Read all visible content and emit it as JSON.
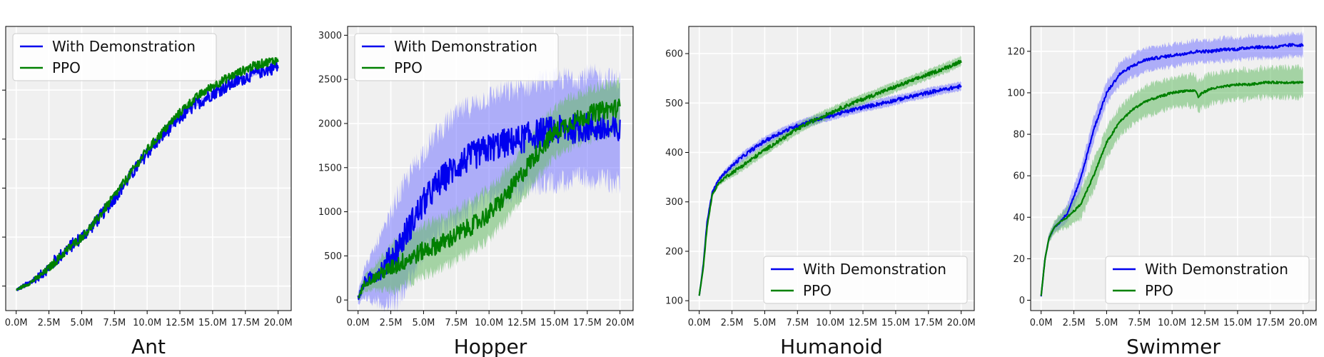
{
  "colors": {
    "demo": "#0000ee",
    "ppo": "#008000",
    "demo_band": "#7777ff",
    "ppo_band": "#66bb66",
    "plot_bg": "#f0f0f0",
    "grid": "#ffffff"
  },
  "chart_data": [
    {
      "type": "line",
      "title": "Ant",
      "xlabel": "",
      "ylabel": "",
      "xlim": [
        -0.8,
        21
      ],
      "ylim": [
        -500,
        5300
      ],
      "x_ticks": [
        0,
        2.5,
        5,
        7.5,
        10,
        12.5,
        15,
        17.5,
        20
      ],
      "x_tick_labels": [
        "0.0M",
        "2.5M",
        "5.0M",
        "7.5M",
        "10.0M",
        "12.5M",
        "15.0M",
        "17.5M",
        "20.0M"
      ],
      "y_ticks": [
        0,
        1000,
        2000,
        3000,
        4000
      ],
      "y_tick_labels": [
        "",
        "",
        "",
        "",
        ""
      ],
      "grid": true,
      "legend": "top-left",
      "series": [
        {
          "name": "With Demonstration",
          "color": "#0000ee",
          "noise": 0.018,
          "band": 0.02,
          "x": [
            0,
            1,
            2,
            3,
            4,
            5,
            6,
            7,
            8,
            9,
            10,
            11,
            12,
            13,
            14,
            15,
            16,
            17,
            18,
            19,
            20
          ],
          "y": [
            -80,
            60,
            250,
            520,
            780,
            1000,
            1280,
            1620,
            1980,
            2350,
            2720,
            3020,
            3300,
            3560,
            3760,
            3930,
            4070,
            4200,
            4320,
            4410,
            4480
          ]
        },
        {
          "name": "PPO",
          "color": "#008000",
          "noise": 0.012,
          "band": 0.025,
          "x": [
            0,
            1,
            2,
            3,
            4,
            5,
            6,
            7,
            8,
            9,
            10,
            11,
            12,
            13,
            14,
            15,
            16,
            17,
            18,
            19,
            20
          ],
          "y": [
            -80,
            60,
            240,
            500,
            770,
            1000,
            1300,
            1660,
            2030,
            2400,
            2780,
            3090,
            3400,
            3680,
            3900,
            4080,
            4230,
            4360,
            4480,
            4560,
            4620
          ]
        }
      ]
    },
    {
      "type": "line",
      "title": "Hopper",
      "xlabel": "",
      "ylabel": "",
      "xlim": [
        -0.8,
        21
      ],
      "ylim": [
        -120,
        3100
      ],
      "x_ticks": [
        0,
        2.5,
        5,
        7.5,
        10,
        12.5,
        15,
        17.5,
        20
      ],
      "x_tick_labels": [
        "0.0M",
        "2.5M",
        "5.0M",
        "7.5M",
        "10.0M",
        "12.5M",
        "15.0M",
        "17.5M",
        "20.0M"
      ],
      "y_ticks": [
        0,
        500,
        1000,
        1500,
        2000,
        2500,
        3000
      ],
      "y_tick_labels": [
        "0",
        "500",
        "1000",
        "1500",
        "2000",
        "2500",
        "3000"
      ],
      "grid": true,
      "legend": "top-left",
      "series": [
        {
          "name": "With Demonstration",
          "color": "#0000ee",
          "noise": 0.04,
          "band": 0.45,
          "x": [
            0,
            0.5,
            1,
            2,
            3,
            4,
            5,
            6,
            7,
            8,
            9,
            10,
            11,
            12,
            13,
            14,
            15,
            16,
            17,
            18,
            19,
            20
          ],
          "y": [
            20,
            200,
            250,
            380,
            580,
            850,
            1100,
            1300,
            1450,
            1570,
            1650,
            1720,
            1770,
            1800,
            1850,
            1900,
            1920,
            1930,
            1950,
            1960,
            1930,
            1900
          ]
        },
        {
          "name": "PPO",
          "color": "#008000",
          "noise": 0.025,
          "band": 0.22,
          "x": [
            0,
            0.5,
            1,
            2,
            3,
            4,
            5,
            6,
            7,
            8,
            9,
            10,
            11,
            12,
            13,
            14,
            15,
            16,
            17,
            18,
            19,
            20
          ],
          "y": [
            20,
            190,
            230,
            320,
            400,
            480,
            560,
            620,
            690,
            780,
            870,
            980,
            1130,
            1320,
            1530,
            1730,
            1900,
            2000,
            2060,
            2120,
            2160,
            2180
          ]
        }
      ]
    },
    {
      "type": "line",
      "title": "Humanoid",
      "xlabel": "",
      "ylabel": "",
      "xlim": [
        -0.8,
        21
      ],
      "ylim": [
        80,
        655
      ],
      "x_ticks": [
        0,
        2.5,
        5,
        7.5,
        10,
        12.5,
        15,
        17.5,
        20
      ],
      "x_tick_labels": [
        "0.0M",
        "2.5M",
        "5.0M",
        "7.5M",
        "10.0M",
        "12.5M",
        "15.0M",
        "17.5M",
        "20.0M"
      ],
      "y_ticks": [
        100,
        200,
        300,
        400,
        500,
        600
      ],
      "y_tick_labels": [
        "100",
        "200",
        "300",
        "400",
        "500",
        "600"
      ],
      "grid": true,
      "legend": "bottom-right",
      "series": [
        {
          "name": "With Demonstration",
          "color": "#0000ee",
          "noise": 0.005,
          "band": 0.04,
          "x": [
            0,
            0.3,
            0.6,
            1,
            1.5,
            2,
            3,
            4,
            5,
            6,
            7,
            8,
            9,
            10,
            11,
            12,
            13,
            14,
            15,
            16,
            17,
            18,
            19,
            20
          ],
          "y": [
            110,
            170,
            260,
            320,
            345,
            360,
            385,
            405,
            423,
            437,
            449,
            459,
            467,
            474,
            481,
            488,
            494,
            500,
            506,
            512,
            518,
            524,
            529,
            534
          ]
        },
        {
          "name": "PPO",
          "color": "#008000",
          "noise": 0.005,
          "band": 0.045,
          "x": [
            0,
            0.3,
            0.6,
            1,
            1.5,
            2,
            3,
            4,
            5,
            6,
            7,
            8,
            9,
            10,
            11,
            12,
            13,
            14,
            15,
            16,
            17,
            18,
            19,
            20
          ],
          "y": [
            110,
            165,
            250,
            315,
            338,
            350,
            368,
            386,
            405,
            422,
            439,
            455,
            468,
            480,
            492,
            503,
            513,
            523,
            533,
            543,
            553,
            563,
            573,
            585
          ]
        }
      ]
    },
    {
      "type": "line",
      "title": "Swimmer",
      "xlabel": "",
      "ylabel": "",
      "xlim": [
        -0.8,
        21
      ],
      "ylim": [
        -5,
        132
      ],
      "x_ticks": [
        0,
        2.5,
        5,
        7.5,
        10,
        12.5,
        15,
        17.5,
        20
      ],
      "x_tick_labels": [
        "0.0M",
        "2.5M",
        "5.0M",
        "7.5M",
        "10.0M",
        "12.5M",
        "15.0M",
        "17.5M",
        "20.0M"
      ],
      "y_ticks": [
        0,
        20,
        40,
        60,
        80,
        100,
        120
      ],
      "y_tick_labels": [
        "0",
        "20",
        "40",
        "60",
        "80",
        "100",
        "120"
      ],
      "grid": true,
      "legend": "bottom-right",
      "series": [
        {
          "name": "With Demonstration",
          "color": "#0000ee",
          "noise": 0.004,
          "band": 0.1,
          "x": [
            0,
            0.3,
            0.6,
            1,
            1.5,
            2,
            3,
            4,
            5,
            6,
            7,
            8,
            9,
            10,
            11,
            12,
            13,
            14,
            15,
            16,
            17,
            18,
            19,
            20
          ],
          "y": [
            2,
            20,
            30,
            35,
            38,
            42,
            58,
            82,
            100,
            109,
            113,
            116,
            117,
            118,
            119,
            120,
            120,
            121,
            121,
            122,
            122,
            122,
            123,
            123
          ]
        },
        {
          "name": "PPO",
          "color": "#008000",
          "noise": 0.003,
          "band": 0.13,
          "x": [
            0,
            0.3,
            0.6,
            1,
            1.5,
            2,
            3,
            4,
            5,
            6,
            7,
            8,
            9,
            10,
            11,
            11.8,
            12,
            12.3,
            13,
            14,
            15,
            16,
            17,
            18,
            19,
            20
          ],
          "y": [
            2,
            20,
            30,
            35,
            38,
            40,
            46,
            60,
            76,
            86,
            92,
            96,
            98,
            100,
            101,
            101,
            98,
            100,
            102,
            103,
            104,
            104,
            105,
            105,
            105,
            105
          ]
        }
      ]
    }
  ]
}
